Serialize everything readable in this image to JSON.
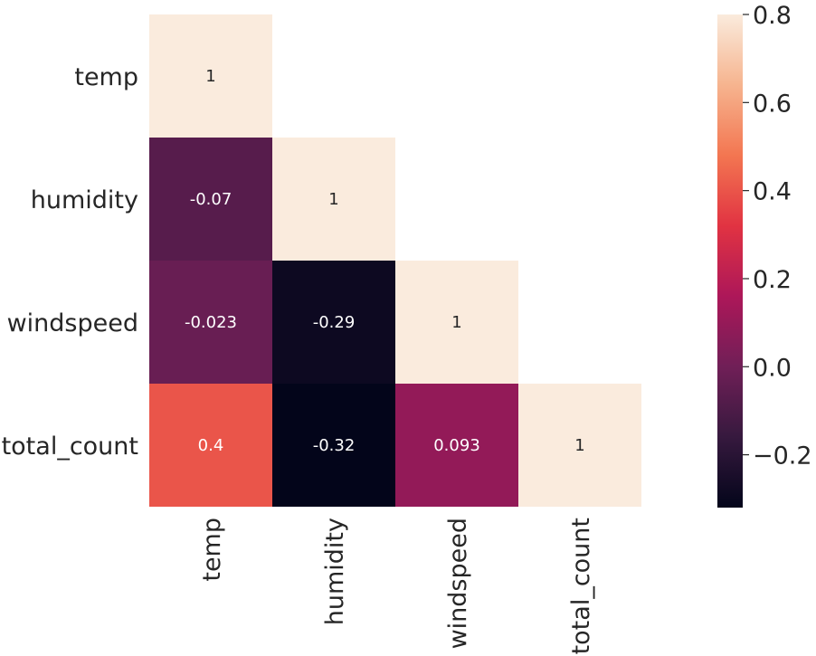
{
  "chart_data": {
    "type": "heatmap",
    "title": "",
    "xlabel": "",
    "ylabel": "",
    "row_labels": [
      "temp",
      "humidity",
      "windspeed",
      "total_count"
    ],
    "col_labels": [
      "temp",
      "humidity",
      "windspeed",
      "total_count"
    ],
    "mask": "upper triangle (lower triangle incl. diagonal shown)",
    "cells": [
      {
        "row": 0,
        "col": 0,
        "value": 1,
        "label": "1"
      },
      {
        "row": 1,
        "col": 0,
        "value": -0.07,
        "label": "-0.07"
      },
      {
        "row": 1,
        "col": 1,
        "value": 1,
        "label": "1"
      },
      {
        "row": 2,
        "col": 0,
        "value": -0.023,
        "label": "-0.023"
      },
      {
        "row": 2,
        "col": 1,
        "value": -0.29,
        "label": "-0.29"
      },
      {
        "row": 2,
        "col": 2,
        "value": 1,
        "label": "1"
      },
      {
        "row": 3,
        "col": 0,
        "value": 0.4,
        "label": "0.4"
      },
      {
        "row": 3,
        "col": 1,
        "value": -0.32,
        "label": "-0.32"
      },
      {
        "row": 3,
        "col": 2,
        "value": 0.093,
        "label": "0.093"
      },
      {
        "row": 3,
        "col": 3,
        "value": 1,
        "label": "1"
      }
    ],
    "colorbar": {
      "vmin": -0.32,
      "vmax": 0.8,
      "ticks": [
        -0.2,
        0.0,
        0.2,
        0.4,
        0.6,
        0.8
      ],
      "tick_labels": [
        "−0.2",
        "0.0",
        "0.2",
        "0.4",
        "0.6",
        "0.8"
      ],
      "colormap": "rocket",
      "color_stops": [
        "#03051a",
        "#36193e",
        "#701f57",
        "#ad1759",
        "#e13342",
        "#f37651",
        "#f6b48f",
        "#faebdd"
      ]
    },
    "grid": false,
    "legend": "colorbar right"
  }
}
